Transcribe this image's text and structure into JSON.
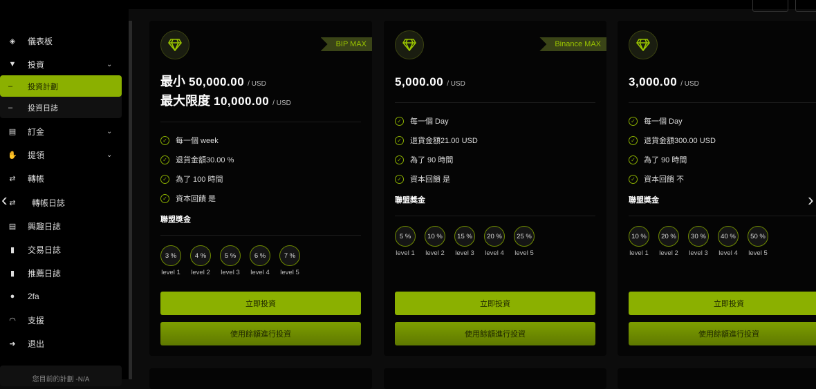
{
  "sidebar": {
    "items": [
      {
        "label": "儀表板",
        "icon": "layers-icon"
      },
      {
        "label": "投資",
        "icon": "funnel-coin-icon",
        "chevron": true
      },
      {
        "label": "訂金",
        "icon": "cash-stack-icon",
        "chevron": true
      },
      {
        "label": "提領",
        "icon": "hand-coin-icon",
        "chevron": true
      },
      {
        "label": "轉帳",
        "icon": "transfer-icon"
      },
      {
        "label": "轉帳日誌",
        "icon": "transfer-icon"
      },
      {
        "label": "興趣日誌",
        "icon": "file-icon"
      },
      {
        "label": "交易日誌",
        "icon": "file-dollar-icon"
      },
      {
        "label": "推薦日誌",
        "icon": "file-dollar-icon"
      },
      {
        "label": "2fa",
        "icon": "user-lock-icon"
      },
      {
        "label": "支援",
        "icon": "headset-icon"
      },
      {
        "label": "退出",
        "icon": "logout-icon"
      }
    ],
    "sub_items": [
      {
        "label": "投資計劃",
        "active": true
      },
      {
        "label": "投資日誌",
        "active": false
      }
    ],
    "current_plan": "您目前的計劃 -N/A"
  },
  "accent": "#8bb000",
  "cards": [
    {
      "ribbon": "BIP MAX",
      "lines": [
        {
          "label": "最小",
          "amount": "50,000.00",
          "unit": "/ USD"
        },
        {
          "label": "最大限度",
          "amount": "10,000.00",
          "unit": "/ USD"
        }
      ],
      "features": [
        "每一個 week",
        "退貨金額30.00 %",
        "為了 100 時間",
        "資本回饋 是"
      ],
      "bonus_title": "聯盟獎金",
      "levels": [
        {
          "pct": "3 %",
          "label": "level 1"
        },
        {
          "pct": "4 %",
          "label": "level 2"
        },
        {
          "pct": "5 %",
          "label": "level 3"
        },
        {
          "pct": "6 %",
          "label": "level 4"
        },
        {
          "pct": "7 %",
          "label": "level 5"
        }
      ],
      "invest_btn": "立即投資",
      "balance_btn": "使用餘額進行投資"
    },
    {
      "ribbon": "Binance MAX",
      "lines": [
        {
          "label": "",
          "amount": "5,000.00",
          "unit": "/ USD"
        }
      ],
      "features": [
        "每一個 Day",
        "退貨金額21.00 USD",
        "為了 90 時間",
        "資本回饋 是"
      ],
      "bonus_title": "聯盟獎金",
      "levels": [
        {
          "pct": "5 %",
          "label": "level 1"
        },
        {
          "pct": "10 %",
          "label": "level 2"
        },
        {
          "pct": "15 %",
          "label": "level 3"
        },
        {
          "pct": "20 %",
          "label": "level 4"
        },
        {
          "pct": "25 %",
          "label": "level 5"
        }
      ],
      "invest_btn": "立即投資",
      "balance_btn": "使用餘額進行投資"
    },
    {
      "ribbon": "",
      "lines": [
        {
          "label": "",
          "amount": "3,000.00",
          "unit": "/ USD"
        }
      ],
      "features": [
        "每一個 Day",
        "退貨金額300.00 USD",
        "為了 90 時間",
        "資本回饋 不"
      ],
      "bonus_title": "聯盟獎金",
      "levels": [
        {
          "pct": "10 %",
          "label": "level 1"
        },
        {
          "pct": "20 %",
          "label": "level 2"
        },
        {
          "pct": "30 %",
          "label": "level 3"
        },
        {
          "pct": "40 %",
          "label": "level 4"
        },
        {
          "pct": "50 %",
          "label": "level 5"
        }
      ],
      "invest_btn": "立即投資",
      "balance_btn": "使用餘額進行投資"
    }
  ]
}
